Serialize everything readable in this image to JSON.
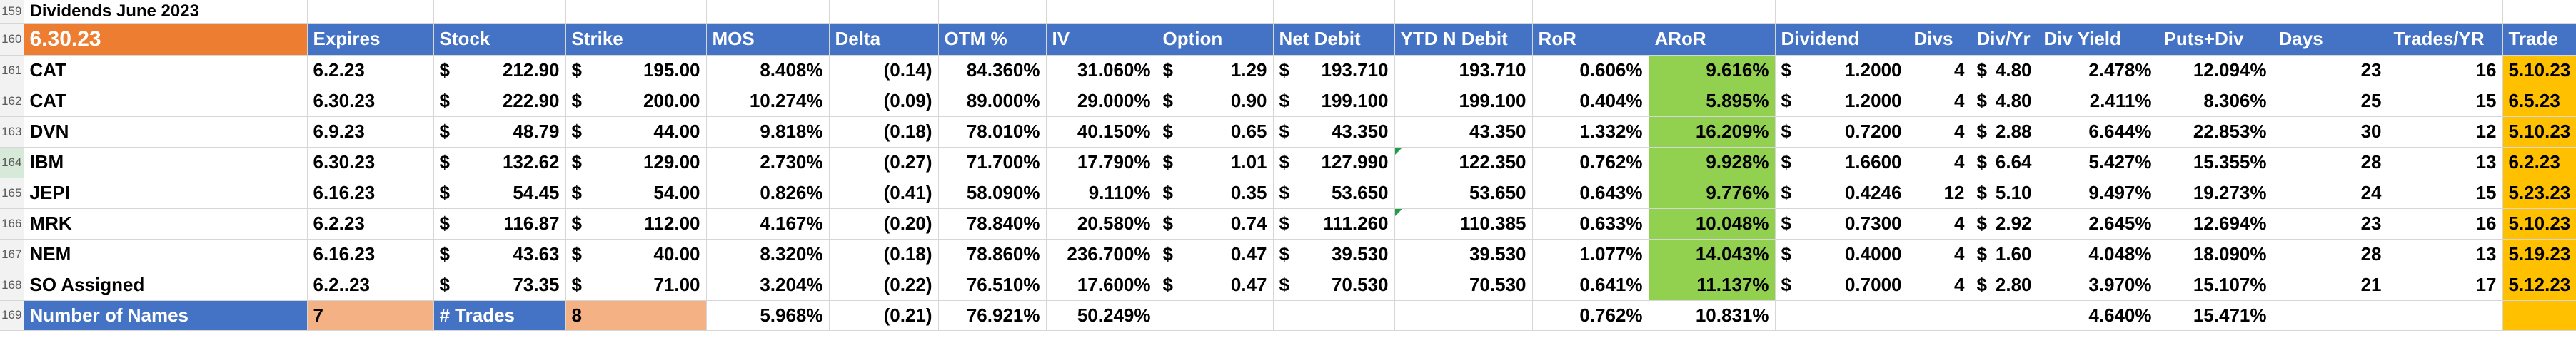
{
  "row_numbers": [
    "159",
    "160",
    "161",
    "162",
    "163",
    "164",
    "165",
    "166",
    "167",
    "168",
    "169"
  ],
  "sheet_title": "Dividends June 2023",
  "header": {
    "date": "6.30.23",
    "cols": [
      "Expires",
      "Stock",
      "Strike",
      "MOS",
      "Delta",
      "OTM %",
      "IV",
      "Option",
      "Net Debit",
      "YTD N Debit",
      "RoR",
      "ARoR",
      "Dividend",
      "Divs",
      "Div/Yr",
      "Div Yield",
      "Puts+Div",
      "Days",
      "Trades/YR",
      "Trade"
    ]
  },
  "rows": [
    {
      "ticker": "CAT",
      "expires": "6.2.23",
      "stock": "212.90",
      "strike": "195.00",
      "mos": "8.408%",
      "delta": "(0.14)",
      "otm": "84.360%",
      "iv": "31.060%",
      "option": "1.29",
      "net_debit": "193.710",
      "ytd": "193.710",
      "ror": "0.606%",
      "aror": "9.616%",
      "dividend": "1.2000",
      "divs": "4",
      "div_yr": "4.80",
      "div_yield": "2.478%",
      "puts_div": "12.094%",
      "days": "23",
      "trades_yr": "16",
      "trade": "5.10.23"
    },
    {
      "ticker": "CAT",
      "expires": "6.30.23",
      "stock": "222.90",
      "strike": "200.00",
      "mos": "10.274%",
      "delta": "(0.09)",
      "otm": "89.000%",
      "iv": "29.000%",
      "option": "0.90",
      "net_debit": "199.100",
      "ytd": "199.100",
      "ror": "0.404%",
      "aror": "5.895%",
      "dividend": "1.2000",
      "divs": "4",
      "div_yr": "4.80",
      "div_yield": "2.411%",
      "puts_div": "8.306%",
      "days": "25",
      "trades_yr": "15",
      "trade": "6.5.23"
    },
    {
      "ticker": "DVN",
      "expires": "6.9.23",
      "stock": "48.79",
      "strike": "44.00",
      "mos": "9.818%",
      "delta": "(0.18)",
      "otm": "78.010%",
      "iv": "40.150%",
      "option": "0.65",
      "net_debit": "43.350",
      "ytd": "43.350",
      "ror": "1.332%",
      "aror": "16.209%",
      "dividend": "0.7200",
      "divs": "4",
      "div_yr": "2.88",
      "div_yield": "6.644%",
      "puts_div": "22.853%",
      "days": "30",
      "trades_yr": "12",
      "trade": "5.10.23"
    },
    {
      "ticker": "IBM",
      "expires": "6.30.23",
      "stock": "132.62",
      "strike": "129.00",
      "mos": "2.730%",
      "delta": "(0.27)",
      "otm": "71.700%",
      "iv": "17.790%",
      "option": "1.01",
      "net_debit": "127.990",
      "ytd": "122.350",
      "ror": "0.762%",
      "aror": "9.928%",
      "dividend": "1.6600",
      "divs": "4",
      "div_yr": "6.64",
      "div_yield": "5.427%",
      "puts_div": "15.355%",
      "days": "28",
      "trades_yr": "13",
      "trade": "6.2.23"
    },
    {
      "ticker": "JEPI",
      "expires": "6.16.23",
      "stock": "54.45",
      "strike": "54.00",
      "mos": "0.826%",
      "delta": "(0.41)",
      "otm": "58.090%",
      "iv": "9.110%",
      "option": "0.35",
      "net_debit": "53.650",
      "ytd": "53.650",
      "ror": "0.643%",
      "aror": "9.776%",
      "dividend": "0.4246",
      "divs": "12",
      "div_yr": "5.10",
      "div_yield": "9.497%",
      "puts_div": "19.273%",
      "days": "24",
      "trades_yr": "15",
      "trade": "5.23.23"
    },
    {
      "ticker": "MRK",
      "expires": "6.2.23",
      "stock": "116.87",
      "strike": "112.00",
      "mos": "4.167%",
      "delta": "(0.20)",
      "otm": "78.840%",
      "iv": "20.580%",
      "option": "0.74",
      "net_debit": "111.260",
      "ytd": "110.385",
      "ror": "0.633%",
      "aror": "10.048%",
      "dividend": "0.7300",
      "divs": "4",
      "div_yr": "2.92",
      "div_yield": "2.645%",
      "puts_div": "12.694%",
      "days": "23",
      "trades_yr": "16",
      "trade": "5.10.23"
    },
    {
      "ticker": "NEM",
      "expires": "6.16.23",
      "stock": "43.63",
      "strike": "40.00",
      "mos": "8.320%",
      "delta": "(0.18)",
      "otm": "78.860%",
      "iv": "236.700%",
      "option": "0.47",
      "net_debit": "39.530",
      "ytd": "39.530",
      "ror": "1.077%",
      "aror": "14.043%",
      "dividend": "0.4000",
      "divs": "4",
      "div_yr": "1.60",
      "div_yield": "4.048%",
      "puts_div": "18.090%",
      "days": "28",
      "trades_yr": "13",
      "trade": "5.19.23"
    },
    {
      "ticker": "SO Assigned",
      "expires": "6.2..23",
      "stock": "73.35",
      "strike": "71.00",
      "mos": "3.204%",
      "delta": "(0.22)",
      "otm": "76.510%",
      "iv": "17.600%",
      "option": "0.47",
      "net_debit": "70.530",
      "ytd": "70.530",
      "ror": "0.641%",
      "aror": "11.137%",
      "dividend": "0.7000",
      "divs": "4",
      "div_yr": "2.80",
      "div_yield": "3.970%",
      "puts_div": "15.107%",
      "days": "21",
      "trades_yr": "17",
      "trade": "5.12.23"
    }
  ],
  "summary": {
    "names_label": "Number of Names",
    "names_value": "7",
    "trades_label": "# Trades",
    "trades_value": "8",
    "mos": "5.968%",
    "delta": "(0.21)",
    "otm": "76.921%",
    "iv": "50.249%",
    "ror": "0.762%",
    "aror": "10.831%",
    "div_yield": "4.640%",
    "puts_div": "15.471%"
  },
  "currency_symbol": "$",
  "colors": {
    "header_blue": "#4472c4",
    "date_orange": "#ed7d31",
    "aror_green": "#92d050",
    "trade_gold": "#ffc000",
    "summary_peach": "#f4b183"
  }
}
